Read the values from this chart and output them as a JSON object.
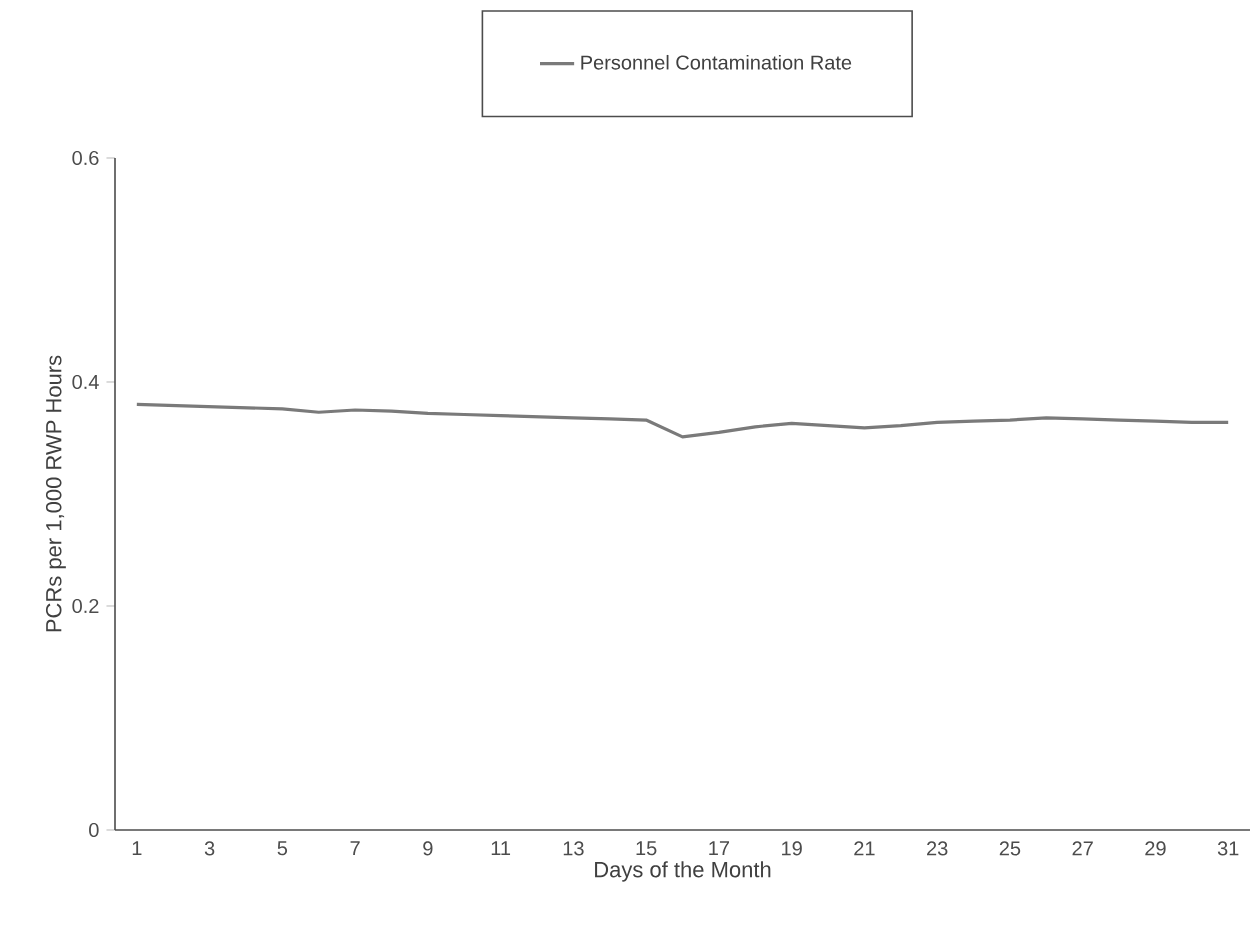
{
  "chart_data": {
    "type": "line",
    "xlabel": "Days of the Month",
    "ylabel": "PCRs per 1,000 RWP Hours",
    "x": [
      1,
      2,
      3,
      4,
      5,
      6,
      7,
      8,
      9,
      10,
      11,
      12,
      13,
      14,
      15,
      16,
      17,
      18,
      19,
      20,
      21,
      22,
      23,
      24,
      25,
      26,
      27,
      28,
      29,
      30,
      31
    ],
    "series": [
      {
        "name": "Personnel Contamination Rate",
        "color": "#7a7a7a",
        "values": [
          0.38,
          0.379,
          0.378,
          0.377,
          0.376,
          0.373,
          0.375,
          0.374,
          0.372,
          0.371,
          0.37,
          0.369,
          0.368,
          0.367,
          0.366,
          0.351,
          0.355,
          0.36,
          0.363,
          0.361,
          0.359,
          0.361,
          0.364,
          0.365,
          0.366,
          0.368,
          0.367,
          0.366,
          0.365,
          0.364,
          0.364
        ]
      }
    ],
    "xlim": [
      0.4,
      31.6
    ],
    "ylim": [
      0,
      0.6
    ],
    "xticks": [
      1,
      3,
      5,
      7,
      9,
      11,
      13,
      15,
      17,
      19,
      21,
      23,
      25,
      27,
      29,
      31
    ],
    "yticks": [
      0,
      0.2,
      0.4,
      0.6
    ],
    "grid": false,
    "legend": "top",
    "marker": "none",
    "line_style": "solid"
  }
}
